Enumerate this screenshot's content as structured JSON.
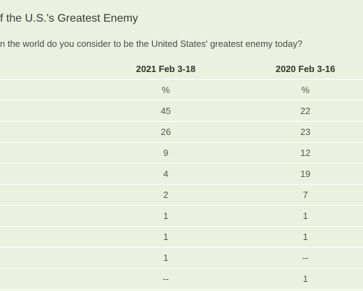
{
  "title": "f the U.S.'s Greatest Enemy",
  "question": "n the world do you consider to be the United States' greatest enemy today?",
  "table": {
    "columns": [
      "2021 Feb 3-18",
      "2020 Feb 3-16"
    ],
    "rows": [
      [
        "%",
        "%"
      ],
      [
        "45",
        "22"
      ],
      [
        "26",
        "23"
      ],
      [
        "9",
        "12"
      ],
      [
        "4",
        "19"
      ],
      [
        "2",
        "7"
      ],
      [
        "1",
        "1"
      ],
      [
        "1",
        "1"
      ],
      [
        "1",
        "--"
      ],
      [
        "--",
        "1"
      ]
    ]
  }
}
